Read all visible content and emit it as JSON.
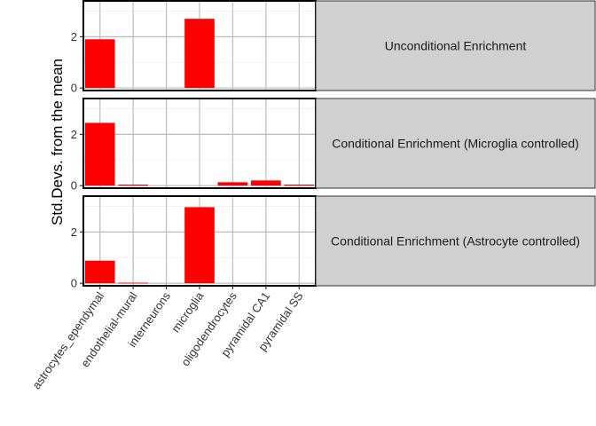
{
  "chart_data": {
    "type": "bar",
    "ylabel": "Std.Devs. from the mean",
    "xlabel": "",
    "categories": [
      "astrocytes_ependymal",
      "endothelial-mural",
      "interneurons",
      "microglia",
      "oligodendrocytes",
      "pyramidal CA1",
      "pyramidal SS"
    ],
    "yticks": [
      0,
      2
    ],
    "ylim": [
      -0.1,
      3.4
    ],
    "bar_color": "#ff0000",
    "strip_color": "#d0d0d0",
    "grid": true,
    "panels": [
      {
        "label": "Unconditional Enrichment",
        "values": [
          1.9,
          0,
          0,
          2.7,
          0,
          0,
          0
        ]
      },
      {
        "label": "Conditional Enrichment (Microglia controlled)",
        "values": [
          2.45,
          0.04,
          0,
          0,
          0.13,
          0.2,
          0.04
        ]
      },
      {
        "label": "Conditional Enrichment (Astrocyte controlled)",
        "values": [
          0.88,
          0.02,
          0,
          2.97,
          0,
          0,
          0
        ]
      }
    ]
  }
}
